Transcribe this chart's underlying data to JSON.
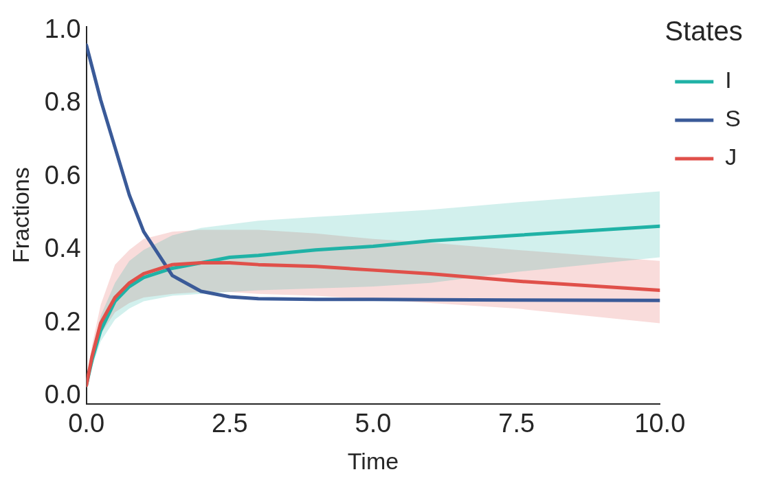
{
  "chart_data": {
    "type": "line",
    "xlabel": "Time",
    "ylabel": "Fractions",
    "legend_title": "States",
    "legend": "top right",
    "grid": false,
    "marker": "none",
    "line_style": "solid",
    "x": [
      0,
      0.1,
      0.25,
      0.5,
      0.75,
      1,
      1.5,
      2,
      2.5,
      3,
      4,
      5,
      6,
      7.5,
      10
    ],
    "xlim": [
      0,
      10
    ],
    "xticks": [
      {
        "value": 0,
        "label": "0.0"
      },
      {
        "value": 2.5,
        "label": "2.5"
      },
      {
        "value": 5,
        "label": "5.0"
      },
      {
        "value": 7.5,
        "label": "7.5"
      },
      {
        "value": 10,
        "label": "10.0"
      }
    ],
    "ylim": [
      -0.02,
      1.01
    ],
    "yticks": [
      {
        "value": 0,
        "label": "0.0"
      },
      {
        "value": 0.2,
        "label": "0.2"
      },
      {
        "value": 0.4,
        "label": "0.4"
      },
      {
        "value": 0.6,
        "label": "0.6"
      },
      {
        "value": 0.8,
        "label": "0.8"
      },
      {
        "value": 1,
        "label": "1.0"
      }
    ],
    "series": [
      {
        "name": "I",
        "color": "#20b2a6",
        "values": [
          0.03,
          0.1,
          0.18,
          0.26,
          0.3,
          0.325,
          0.35,
          0.365,
          0.38,
          0.385,
          0.4,
          0.41,
          0.425,
          0.44,
          0.465
        ],
        "upper": [
          0.03,
          0.12,
          0.22,
          0.31,
          0.37,
          0.4,
          0.44,
          0.46,
          0.47,
          0.48,
          0.49,
          0.5,
          0.51,
          0.53,
          0.56
        ],
        "lower": [
          0.03,
          0.08,
          0.15,
          0.21,
          0.24,
          0.26,
          0.275,
          0.28,
          0.285,
          0.29,
          0.295,
          0.3,
          0.31,
          0.34,
          0.38
        ]
      },
      {
        "name": "S",
        "color": "#3a5a98",
        "values": [
          0.96,
          0.9,
          0.81,
          0.68,
          0.55,
          0.45,
          0.33,
          0.287,
          0.272,
          0.267,
          0.265,
          0.265,
          0.264,
          0.263,
          0.262
        ]
      },
      {
        "name": "J",
        "color": "#e0504a",
        "values": [
          0.03,
          0.11,
          0.2,
          0.27,
          0.31,
          0.335,
          0.36,
          0.365,
          0.365,
          0.36,
          0.355,
          0.345,
          0.335,
          0.315,
          0.29
        ],
        "upper": [
          0.03,
          0.14,
          0.25,
          0.36,
          0.4,
          0.43,
          0.45,
          0.455,
          0.455,
          0.455,
          0.445,
          0.43,
          0.42,
          0.4,
          0.37
        ],
        "lower": [
          0.03,
          0.09,
          0.17,
          0.23,
          0.255,
          0.27,
          0.28,
          0.285,
          0.285,
          0.28,
          0.275,
          0.265,
          0.255,
          0.24,
          0.2
        ]
      }
    ]
  }
}
